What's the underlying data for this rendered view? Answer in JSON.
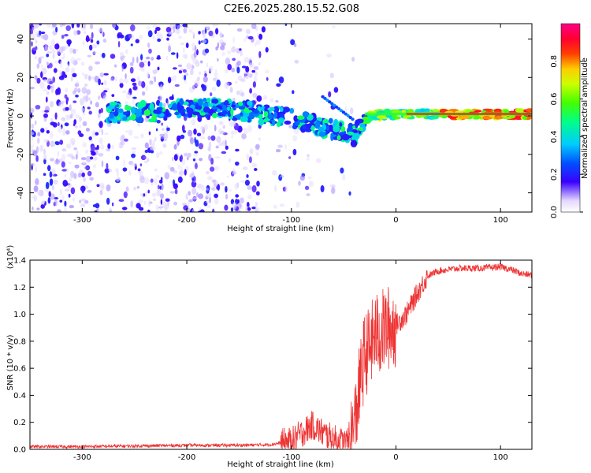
{
  "title": "C2E6.2025.280.15.52.G08",
  "chart_data": [
    {
      "type": "heatmap",
      "xlabel": "Height of straight line (km)",
      "ylabel": "Frequency (Hz)",
      "xlim": [
        -350,
        130
      ],
      "ylim": [
        -50,
        48
      ],
      "xticks": [
        -300,
        -200,
        -100,
        0,
        100
      ],
      "yticks": [
        -40,
        -20,
        0,
        20,
        40
      ],
      "colorbar": {
        "label": "Normalized spectral amplitude",
        "range": [
          0.0,
          1.0
        ],
        "ticks": [
          0.0,
          0.2,
          0.4,
          0.6,
          0.8
        ],
        "tick_labels": [
          "0.0",
          "0.2",
          "0.4",
          "0.6",
          "0.8"
        ]
      },
      "description_points": [
        {
          "x": -350,
          "f": 2
        },
        {
          "x": -270,
          "f": 2
        },
        {
          "x": -230,
          "f": 2
        },
        {
          "x": -200,
          "f": 5
        },
        {
          "x": -150,
          "f": 3
        },
        {
          "x": -100,
          "f": -1
        },
        {
          "x": -70,
          "f": -6
        },
        {
          "x": -40,
          "f": -10
        },
        {
          "x": -25,
          "f": 0
        },
        {
          "x": 0,
          "f": 1
        },
        {
          "x": 50,
          "f": 1
        },
        {
          "x": 130,
          "f": 1
        }
      ]
    },
    {
      "type": "line",
      "xlabel": "Height of straight line (km)",
      "ylabel": "SNR (10 * v/v)",
      "yscale_label": "(x10⁴)",
      "xlim": [
        -350,
        130
      ],
      "ylim": [
        0.0,
        1.4
      ],
      "xticks": [
        -300,
        -200,
        -100,
        0,
        100
      ],
      "yticks": [
        0.0,
        0.2,
        0.4,
        0.6,
        0.8,
        1.0,
        1.2,
        1.4
      ],
      "ytick_labels": [
        "0.0",
        "0.2",
        "0.4",
        "0.6",
        "0.8",
        "1.0",
        "1.2",
        "1.4"
      ],
      "series": [
        {
          "name": "SNR",
          "color": "#ee3333",
          "x": [
            -350,
            -300,
            -250,
            -200,
            -150,
            -120,
            -100,
            -90,
            -80,
            -70,
            -60,
            -50,
            -45,
            -40,
            -35,
            -30,
            -25,
            -20,
            -15,
            -10,
            -5,
            0,
            10,
            20,
            30,
            40,
            60,
            80,
            100,
            110,
            120,
            130
          ],
          "y": [
            0.02,
            0.02,
            0.025,
            0.03,
            0.03,
            0.035,
            0.06,
            0.12,
            0.18,
            0.12,
            0.08,
            0.05,
            0.05,
            0.15,
            0.45,
            0.7,
            0.75,
            0.85,
            0.85,
            0.9,
            0.9,
            0.92,
            1.0,
            1.15,
            1.28,
            1.32,
            1.34,
            1.34,
            1.35,
            1.33,
            1.3,
            1.29
          ]
        }
      ]
    }
  ]
}
